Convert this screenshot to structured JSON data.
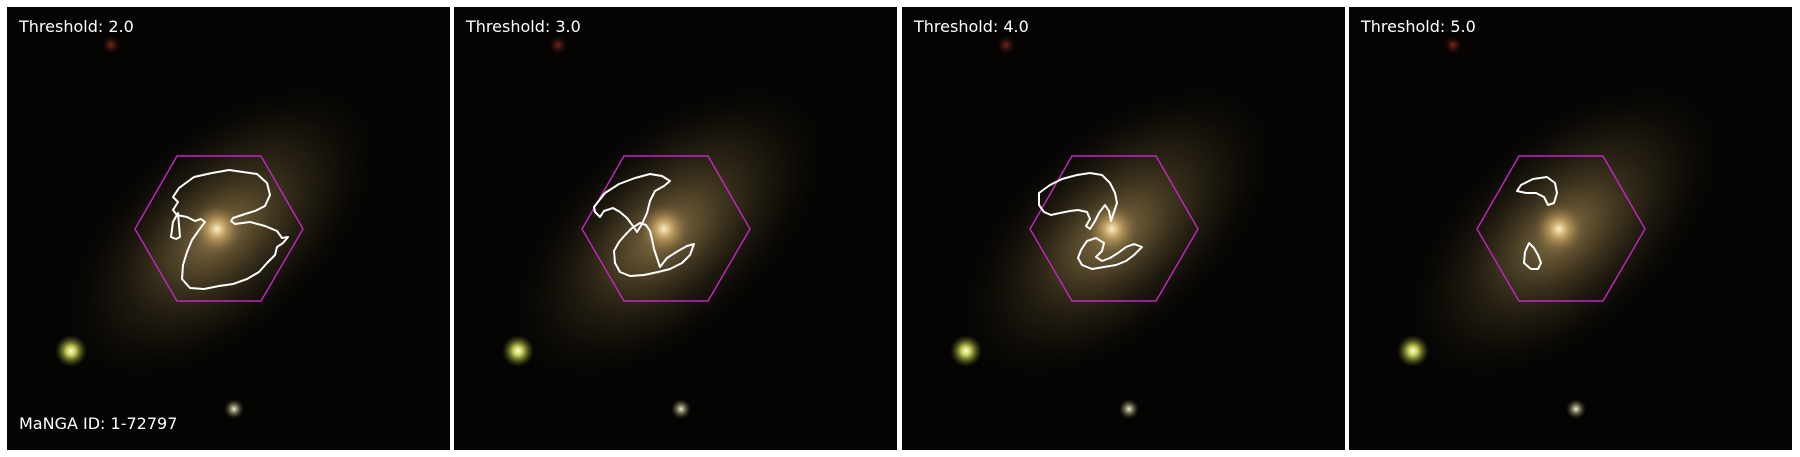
{
  "manga_id_label": "MaNGA ID: 1-72797",
  "colors": {
    "background": "#050403",
    "hexagon": "#c227c2",
    "contour": "#ffffff",
    "separator": "#ffffff"
  },
  "panels": [
    {
      "threshold_label": "Threshold: 2.0"
    },
    {
      "threshold_label": "Threshold: 3.0"
    },
    {
      "threshold_label": "Threshold: 4.0"
    },
    {
      "threshold_label": "Threshold: 5.0"
    }
  ]
}
